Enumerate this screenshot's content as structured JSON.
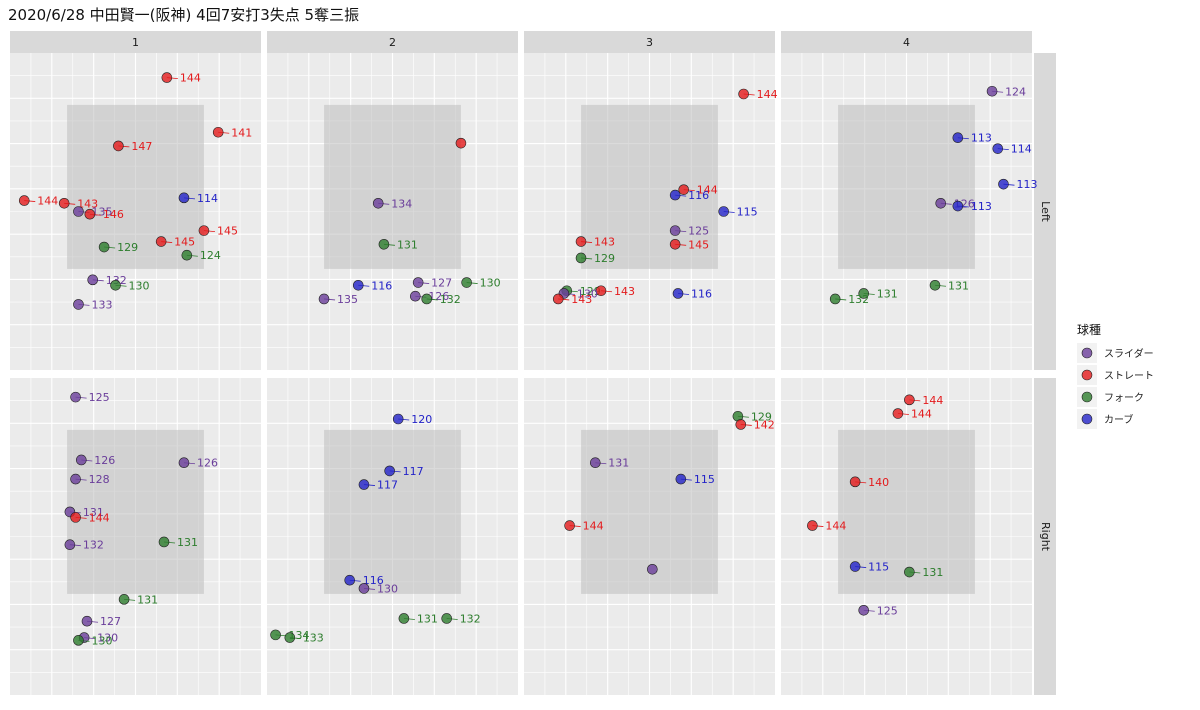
{
  "title": "2020/6/28 中田賢一(阪神) 4回7安打3失点 5奪三振",
  "legend": {
    "title": "球種",
    "items": [
      {
        "label": "スライダー",
        "color": "#6a3d9a"
      },
      {
        "label": "ストレート",
        "color": "#e31a1c"
      },
      {
        "label": "フォーク",
        "color": "#2d7d2d"
      },
      {
        "label": "カーブ",
        "color": "#2323c8"
      }
    ]
  },
  "chart_data": {
    "type": "scatter",
    "facet_cols": [
      "1",
      "2",
      "3",
      "4"
    ],
    "facet_rows": [
      "Left",
      "Right"
    ],
    "grid": true,
    "legend_position": "right",
    "x_range": [
      -2.2,
      2.2
    ],
    "y_range": [
      -0.6,
      5.2
    ],
    "strike_zone": {
      "x": [
        -1.2,
        1.2
      ],
      "y": [
        1.25,
        4.25
      ]
    },
    "panels": [
      {
        "inning": "1",
        "batter": "Left",
        "points": [
          {
            "x": 0.55,
            "y": 4.75,
            "type": "ストレート",
            "speed": "144"
          },
          {
            "x": 1.45,
            "y": 3.75,
            "type": "ストレート",
            "speed": "141"
          },
          {
            "x": -0.3,
            "y": 3.5,
            "type": "ストレート",
            "speed": "147"
          },
          {
            "x": 0.85,
            "y": 2.55,
            "type": "カーブ",
            "speed": "114"
          },
          {
            "x": -1.95,
            "y": 2.5,
            "type": "ストレート",
            "speed": "144"
          },
          {
            "x": -1.25,
            "y": 2.45,
            "type": "ストレート",
            "speed": "143"
          },
          {
            "x": -1.0,
            "y": 2.3,
            "type": "スライダー",
            "speed": "135"
          },
          {
            "x": -0.8,
            "y": 2.25,
            "type": "ストレート",
            "speed": "146"
          },
          {
            "x": 1.2,
            "y": 1.95,
            "type": "ストレート",
            "speed": "145"
          },
          {
            "x": 0.45,
            "y": 1.75,
            "type": "ストレート",
            "speed": "145"
          },
          {
            "x": -0.55,
            "y": 1.65,
            "type": "フォーク",
            "speed": "129"
          },
          {
            "x": 0.9,
            "y": 1.5,
            "type": "フォーク",
            "speed": "124"
          },
          {
            "x": -0.75,
            "y": 1.05,
            "type": "スライダー",
            "speed": "132"
          },
          {
            "x": -0.35,
            "y": 0.95,
            "type": "フォーク",
            "speed": "130"
          },
          {
            "x": -1.0,
            "y": 0.6,
            "type": "スライダー",
            "speed": "133"
          }
        ]
      },
      {
        "inning": "2",
        "batter": "Left",
        "points": [
          {
            "x": 1.2,
            "y": 3.55,
            "type": "ストレート",
            "speed": ""
          },
          {
            "x": -0.25,
            "y": 2.45,
            "type": "スライダー",
            "speed": "134"
          },
          {
            "x": -0.15,
            "y": 1.7,
            "type": "フォーク",
            "speed": "131"
          },
          {
            "x": -0.6,
            "y": 0.95,
            "type": "カーブ",
            "speed": "116"
          },
          {
            "x": 0.45,
            "y": 1.0,
            "type": "スライダー",
            "speed": "127"
          },
          {
            "x": 1.3,
            "y": 1.0,
            "type": "フォーク",
            "speed": "130"
          },
          {
            "x": -1.2,
            "y": 0.7,
            "type": "スライダー",
            "speed": "135"
          },
          {
            "x": 0.4,
            "y": 0.75,
            "type": "スライダー",
            "speed": "126"
          },
          {
            "x": 0.6,
            "y": 0.7,
            "type": "フォーク",
            "speed": "132"
          }
        ]
      },
      {
        "inning": "3",
        "batter": "Left",
        "points": [
          {
            "x": 1.65,
            "y": 4.45,
            "type": "ストレート",
            "speed": "144"
          },
          {
            "x": 0.6,
            "y": 2.7,
            "type": "ストレート",
            "speed": "144"
          },
          {
            "x": 0.45,
            "y": 2.6,
            "type": "カーブ",
            "speed": "116"
          },
          {
            "x": 1.3,
            "y": 2.3,
            "type": "カーブ",
            "speed": "115"
          },
          {
            "x": 0.45,
            "y": 1.95,
            "type": "スライダー",
            "speed": "125"
          },
          {
            "x": -1.2,
            "y": 1.75,
            "type": "ストレート",
            "speed": "143"
          },
          {
            "x": 0.45,
            "y": 1.7,
            "type": "ストレート",
            "speed": "145"
          },
          {
            "x": -1.2,
            "y": 1.45,
            "type": "フォーク",
            "speed": "129"
          },
          {
            "x": -1.45,
            "y": 0.85,
            "type": "フォーク",
            "speed": "129"
          },
          {
            "x": -0.85,
            "y": 0.85,
            "type": "ストレート",
            "speed": "143"
          },
          {
            "x": -1.5,
            "y": 0.8,
            "type": "スライダー",
            "speed": "130"
          },
          {
            "x": 0.5,
            "y": 0.8,
            "type": "カーブ",
            "speed": "116"
          },
          {
            "x": -1.6,
            "y": 0.7,
            "type": "ストレート",
            "speed": "143"
          }
        ]
      },
      {
        "inning": "4",
        "batter": "Left",
        "points": [
          {
            "x": 1.5,
            "y": 4.5,
            "type": "スライダー",
            "speed": "124"
          },
          {
            "x": 0.9,
            "y": 3.65,
            "type": "カーブ",
            "speed": "113"
          },
          {
            "x": 1.6,
            "y": 3.45,
            "type": "カーブ",
            "speed": "114"
          },
          {
            "x": 1.7,
            "y": 2.8,
            "type": "カーブ",
            "speed": "113"
          },
          {
            "x": 0.6,
            "y": 2.45,
            "type": "スライダー",
            "speed": "126"
          },
          {
            "x": 0.9,
            "y": 2.4,
            "type": "カーブ",
            "speed": "113"
          },
          {
            "x": 0.5,
            "y": 0.95,
            "type": "フォーク",
            "speed": "131"
          },
          {
            "x": -0.75,
            "y": 0.8,
            "type": "フォーク",
            "speed": "131"
          },
          {
            "x": -1.25,
            "y": 0.7,
            "type": "フォーク",
            "speed": "132"
          }
        ]
      },
      {
        "inning": "1",
        "batter": "Right",
        "points": [
          {
            "x": -1.05,
            "y": 4.85,
            "type": "スライダー",
            "speed": "125"
          },
          {
            "x": -0.95,
            "y": 3.7,
            "type": "スライダー",
            "speed": "126"
          },
          {
            "x": 0.85,
            "y": 3.65,
            "type": "スライダー",
            "speed": "126"
          },
          {
            "x": -1.05,
            "y": 3.35,
            "type": "スライダー",
            "speed": "128"
          },
          {
            "x": -1.15,
            "y": 2.75,
            "type": "スライダー",
            "speed": "131"
          },
          {
            "x": -1.05,
            "y": 2.65,
            "type": "ストレート",
            "speed": "144"
          },
          {
            "x": 0.5,
            "y": 2.2,
            "type": "フォーク",
            "speed": "131"
          },
          {
            "x": -1.15,
            "y": 2.15,
            "type": "スライダー",
            "speed": "132"
          },
          {
            "x": -0.2,
            "y": 1.15,
            "type": "フォーク",
            "speed": "131"
          },
          {
            "x": -0.85,
            "y": 0.75,
            "type": "スライダー",
            "speed": "127"
          },
          {
            "x": -0.9,
            "y": 0.45,
            "type": "スライダー",
            "speed": "130"
          },
          {
            "x": -1.0,
            "y": 0.4,
            "type": "フォーク",
            "speed": "130"
          }
        ]
      },
      {
        "inning": "2",
        "batter": "Right",
        "points": [
          {
            "x": 0.1,
            "y": 4.45,
            "type": "カーブ",
            "speed": "120"
          },
          {
            "x": -0.05,
            "y": 3.5,
            "type": "カーブ",
            "speed": "117"
          },
          {
            "x": -0.5,
            "y": 3.25,
            "type": "カーブ",
            "speed": "117"
          },
          {
            "x": -0.75,
            "y": 1.5,
            "type": "カーブ",
            "speed": "116"
          },
          {
            "x": -0.5,
            "y": 1.35,
            "type": "スライダー",
            "speed": "130"
          },
          {
            "x": 0.2,
            "y": 0.8,
            "type": "フォーク",
            "speed": "131"
          },
          {
            "x": 0.95,
            "y": 0.8,
            "type": "フォーク",
            "speed": "132"
          },
          {
            "x": -2.05,
            "y": 0.5,
            "type": "フォーク",
            "speed": "134"
          },
          {
            "x": -1.8,
            "y": 0.45,
            "type": "フォーク",
            "speed": "133"
          }
        ]
      },
      {
        "inning": "3",
        "batter": "Right",
        "points": [
          {
            "x": 1.55,
            "y": 4.5,
            "type": "フォーク",
            "speed": "129"
          },
          {
            "x": 1.6,
            "y": 4.35,
            "type": "ストレート",
            "speed": "142"
          },
          {
            "x": -0.95,
            "y": 3.65,
            "type": "スライダー",
            "speed": "131"
          },
          {
            "x": 0.55,
            "y": 3.35,
            "type": "カーブ",
            "speed": "115"
          },
          {
            "x": -1.4,
            "y": 2.5,
            "type": "ストレート",
            "speed": "144"
          },
          {
            "x": 0.05,
            "y": 1.7,
            "type": "スライダー",
            "speed": ""
          }
        ]
      },
      {
        "inning": "4",
        "batter": "Right",
        "points": [
          {
            "x": 0.05,
            "y": 4.8,
            "type": "ストレート",
            "speed": "144"
          },
          {
            "x": -0.15,
            "y": 4.55,
            "type": "ストレート",
            "speed": "144"
          },
          {
            "x": -0.9,
            "y": 3.3,
            "type": "ストレート",
            "speed": "140"
          },
          {
            "x": -1.65,
            "y": 2.5,
            "type": "ストレート",
            "speed": "144"
          },
          {
            "x": -0.9,
            "y": 1.75,
            "type": "カーブ",
            "speed": "115"
          },
          {
            "x": 0.05,
            "y": 1.65,
            "type": "フォーク",
            "speed": "131"
          },
          {
            "x": -0.75,
            "y": 0.95,
            "type": "スライダー",
            "speed": "125"
          }
        ]
      }
    ]
  }
}
